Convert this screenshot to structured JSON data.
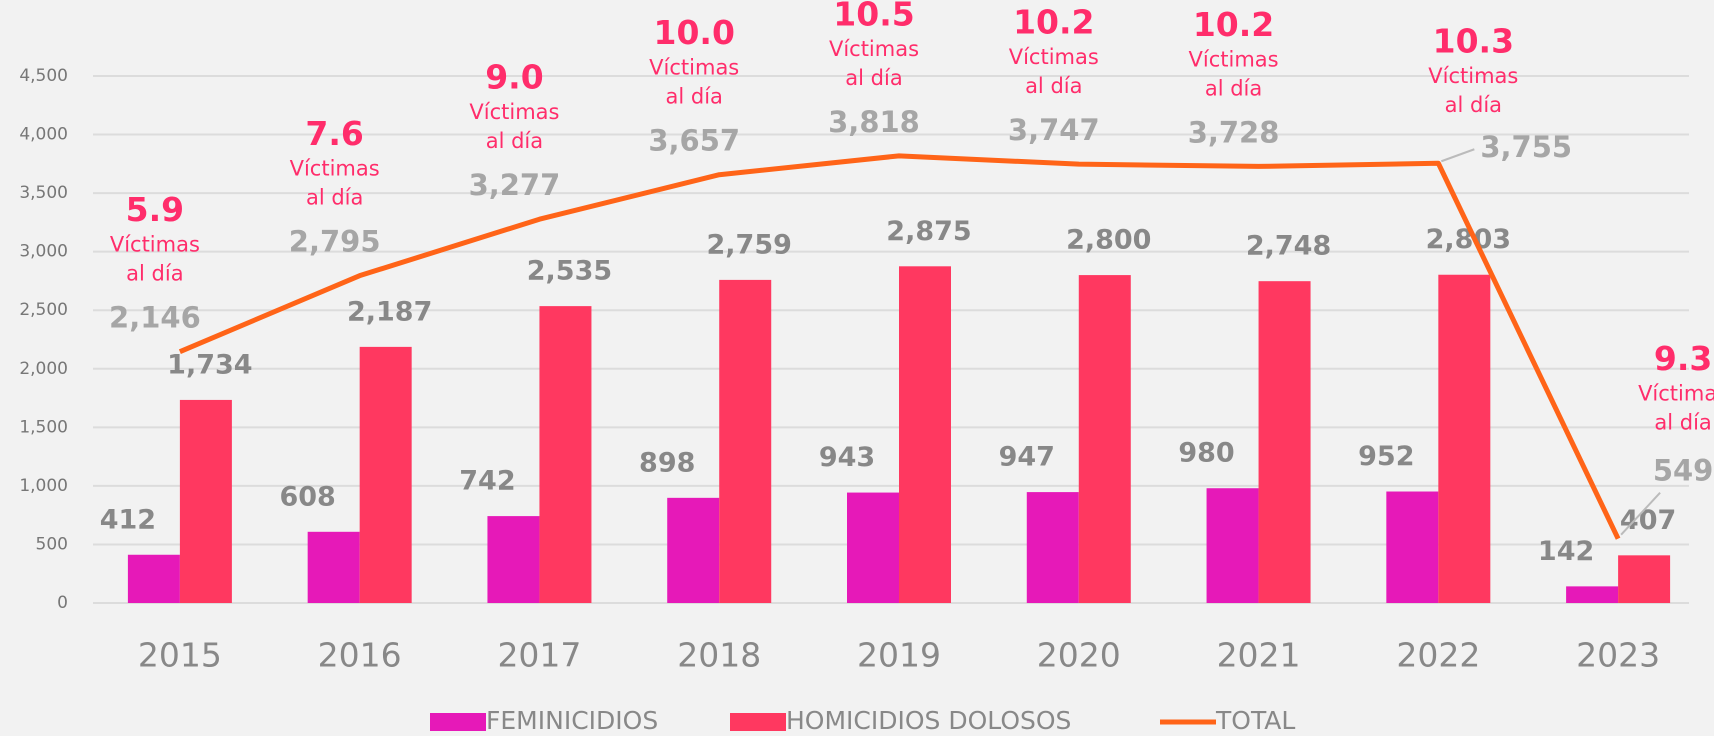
{
  "chart_data": {
    "type": "bar",
    "categories": [
      "2015",
      "2016",
      "2017",
      "2018",
      "2019",
      "2020",
      "2021",
      "2022",
      "2023"
    ],
    "series": [
      {
        "name": "FEMINICIDIOS",
        "color": "#e619b8",
        "values": [
          412,
          608,
          742,
          898,
          943,
          947,
          980,
          952,
          142
        ],
        "value_labels": [
          "412",
          "608",
          "742",
          "898",
          "943",
          "947",
          "980",
          "952",
          "142"
        ]
      },
      {
        "name": "HOMICIDIOS DOLOSOS",
        "color": "#ff3860",
        "values": [
          1734,
          2187,
          2535,
          2759,
          2875,
          2800,
          2748,
          2803,
          407
        ],
        "value_labels": [
          "1,734",
          "2,187",
          "2,535",
          "2,759",
          "2,875",
          "2,800",
          "2,748",
          "2,803",
          "407"
        ]
      },
      {
        "name": "TOTAL",
        "type": "line",
        "color": "#ff6418",
        "values": [
          2146,
          2795,
          3277,
          3657,
          3818,
          3747,
          3728,
          3755,
          549
        ],
        "value_labels": [
          "2,146",
          "2,795",
          "3,277",
          "3,657",
          "3,818",
          "3,747",
          "3,728",
          "3,755",
          "549"
        ]
      }
    ],
    "daily_rate": {
      "values": [
        5.9,
        7.6,
        9.0,
        10.0,
        10.5,
        10.2,
        10.2,
        10.3,
        9.3
      ],
      "value_labels": [
        "5.9",
        "7.6",
        "9.0",
        "10.0",
        "10.5",
        "10.2",
        "10.2",
        "10.3",
        "9.3"
      ],
      "caption": [
        "Víctimas",
        "al día"
      ]
    },
    "ylim": [
      0,
      4500
    ],
    "yticks": [
      0,
      {
        "value": 500,
        "label": "500"
      },
      {
        "value": 1000,
        "label": "1,000"
      },
      {
        "value": 1500,
        "label": "1,500"
      },
      {
        "value": 2000,
        "label": "2,000"
      },
      {
        "value": 2500,
        "label": "2,500"
      },
      {
        "value": 3000,
        "label": "3,000"
      },
      {
        "value": 3500,
        "label": "3,500"
      },
      {
        "value": 4000,
        "label": "4,000"
      },
      {
        "value": 4500,
        "label": "4,500"
      }
    ],
    "grid": true,
    "legend": "bottom"
  }
}
